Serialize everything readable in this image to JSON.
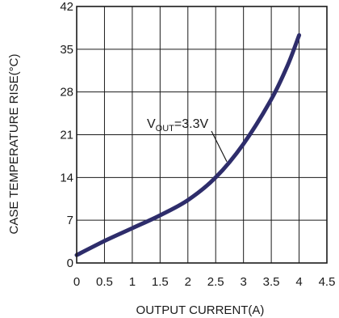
{
  "chart_data": {
    "type": "line",
    "title": "",
    "xlabel": "OUTPUT CURRENT(A)",
    "ylabel": "CASE TEMPERATURE RISE(°C)",
    "xlim": [
      0,
      4.5
    ],
    "ylim": [
      0,
      42
    ],
    "xticks": [
      "0",
      "0.5",
      "1",
      "1.5",
      "2",
      "2.5",
      "3",
      "3.5",
      "4",
      "4.5"
    ],
    "yticks": [
      "0",
      "7",
      "14",
      "21",
      "28",
      "35",
      "42"
    ],
    "grid": true,
    "series": [
      {
        "color": "#2e2d6b",
        "x": [
          0,
          0.5,
          1.0,
          1.5,
          2.0,
          2.5,
          3.0,
          3.5,
          3.8,
          4.0
        ],
        "y": [
          1.3,
          3.6,
          5.7,
          7.8,
          10.3,
          14.0,
          19.5,
          26.8,
          32.5,
          37.3
        ]
      }
    ],
    "annotation": {
      "label_main": "V",
      "label_sub": "OUT",
      "label_rest": "=3.3V",
      "arrow_to_x": 2.7
    }
  }
}
